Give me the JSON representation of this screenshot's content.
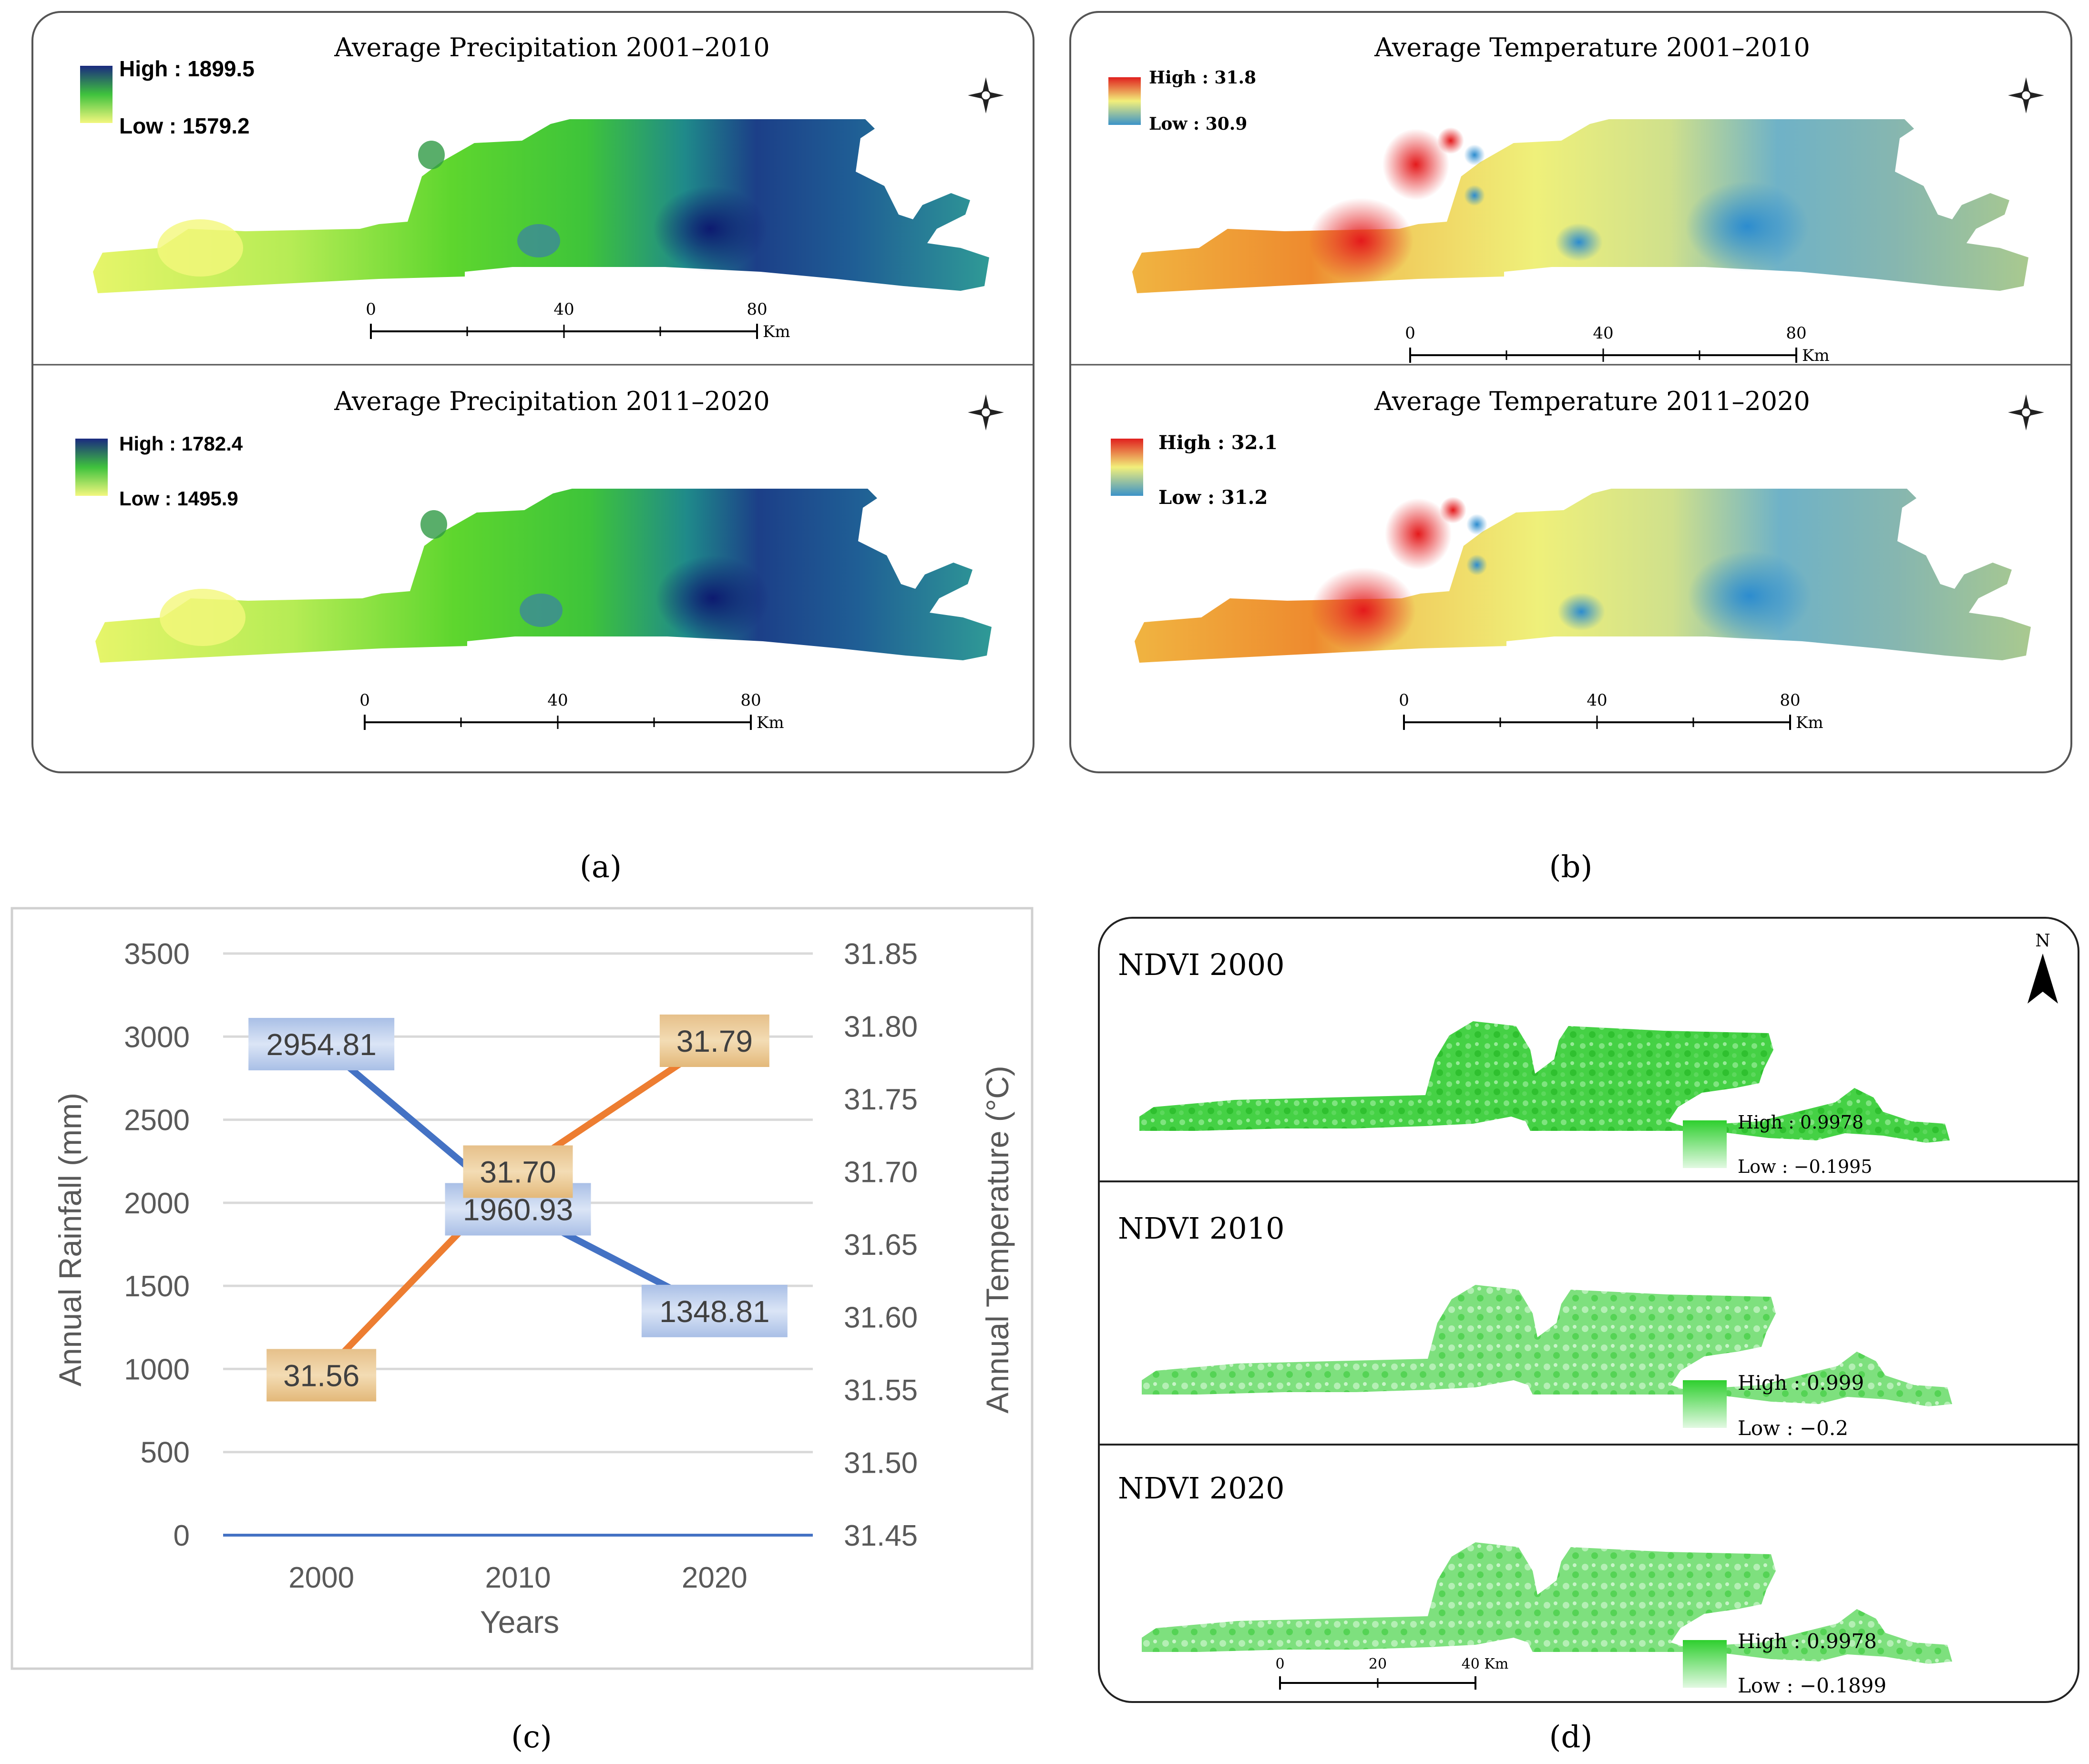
{
  "captions": {
    "a": "(a)",
    "b": "(b)",
    "c": "(c)",
    "d": "(d)"
  },
  "panel_a": {
    "maps": [
      {
        "title": "Average Precipitation 2001–2010",
        "legend_high": "High : 1899.5",
        "legend_low": "Low : 1579.2",
        "scale_ticks": [
          "0",
          "40",
          "80"
        ],
        "scale_unit": "Km"
      },
      {
        "title": "Average Precipitation 2011–2020",
        "legend_high": "High : 1782.4",
        "legend_low": "Low : 1495.9",
        "scale_ticks": [
          "0",
          "40",
          "80"
        ],
        "scale_unit": "Km"
      }
    ],
    "colors": {
      "high": "#1a2a80",
      "mid": "#4fd12a",
      "low": "#f3f77e"
    }
  },
  "panel_b": {
    "maps": [
      {
        "title": "Average Temperature 2001–2010",
        "legend_high": "High : 31.8",
        "legend_low": "Low : 30.9",
        "scale_ticks": [
          "0",
          "40",
          "80"
        ],
        "scale_unit": "Km"
      },
      {
        "title": "Average Temperature 2011–2020",
        "legend_high": "High : 32.1",
        "legend_low": "Low : 31.2",
        "scale_ticks": [
          "0",
          "40",
          "80"
        ],
        "scale_unit": "Km"
      }
    ],
    "colors": {
      "high": "#e0201e",
      "mid": "#f2ef7a",
      "low": "#3b93c8"
    }
  },
  "chart_data": {
    "type": "line",
    "categories": [
      "2000",
      "2010",
      "2020"
    ],
    "series": [
      {
        "name": "Annual Rainfall",
        "axis": "left",
        "values": [
          2954.81,
          1960.93,
          1348.81
        ],
        "labels": [
          "2954.81",
          "1960.93",
          "1348.81"
        ],
        "color": "#4472c4"
      },
      {
        "name": "Annual Temperature",
        "axis": "right",
        "values": [
          31.56,
          31.7,
          31.79
        ],
        "labels": [
          "31.56",
          "31.70",
          "31.79"
        ],
        "color": "#ed7d31"
      }
    ],
    "xlabel": "Years",
    "ylabel_left": "Annual Rainfall (mm)",
    "ylabel_right": "Annual Temperature (°C)",
    "ylim_left": [
      0,
      3500
    ],
    "ylim_right": [
      31.45,
      31.85
    ],
    "left_ticks": [
      "0",
      "500",
      "1000",
      "1500",
      "2000",
      "2500",
      "3000",
      "3500"
    ],
    "right_ticks": [
      "31.45",
      "31.50",
      "31.55",
      "31.60",
      "31.65",
      "31.70",
      "31.75",
      "31.80",
      "31.85"
    ],
    "grid": true
  },
  "panel_d": {
    "north": "N",
    "maps": [
      {
        "title": "NDVI 2000",
        "legend_high": "High : 0.9978",
        "legend_low": "Low : −0.1995"
      },
      {
        "title": "NDVI 2010",
        "legend_high": "High : 0.999",
        "legend_low": "Low : −0.2"
      },
      {
        "title": "NDVI 2020",
        "legend_high": "High : 0.9978",
        "legend_low": "Low : −0.1899"
      }
    ],
    "scale_ticks": [
      "0",
      "20",
      "40 Km"
    ],
    "colors": {
      "high": "#2ecf2e",
      "low": "#d9f7d9"
    }
  }
}
